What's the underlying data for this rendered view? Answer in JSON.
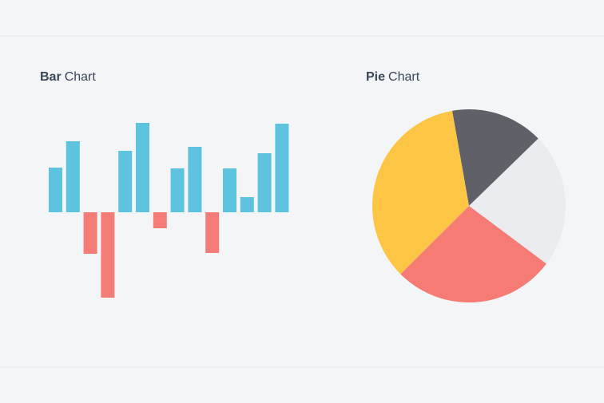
{
  "chart_data": [
    {
      "type": "bar",
      "title": [
        "Bar",
        "Chart"
      ],
      "values": [
        56,
        89,
        -52,
        -107,
        77,
        112,
        -20,
        55,
        82,
        -51,
        55,
        19,
        74,
        111
      ],
      "positive_color": "#5ec3df",
      "negative_color": "#f47c76",
      "ylim": [
        -120,
        120
      ]
    },
    {
      "type": "pie",
      "title": [
        "Pie",
        "Chart"
      ],
      "values": [
        15.5,
        22.5,
        27.3,
        34.7
      ],
      "colors": [
        "#5f6068",
        "#ebecef",
        "#f77b75",
        "#fdc544"
      ],
      "start_angle": -10
    }
  ]
}
